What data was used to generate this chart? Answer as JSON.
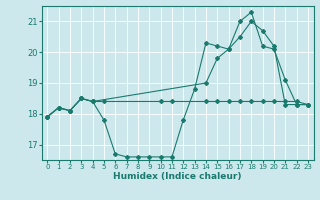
{
  "xlabel": "Humidex (Indice chaleur)",
  "bg_color": "#cce8ec",
  "grid_color": "#ffffff",
  "line_color": "#1a7a6e",
  "xlim": [
    -0.5,
    23.5
  ],
  "ylim": [
    16.5,
    21.5
  ],
  "yticks": [
    17,
    18,
    19,
    20,
    21
  ],
  "xticks": [
    0,
    1,
    2,
    3,
    4,
    5,
    6,
    7,
    8,
    9,
    10,
    11,
    12,
    13,
    14,
    15,
    16,
    17,
    18,
    19,
    20,
    21,
    22,
    23
  ],
  "series": [
    {
      "x": [
        0,
        1,
        2,
        3,
        4,
        5,
        6,
        7,
        8,
        9,
        10,
        11,
        12,
        13,
        14,
        15,
        16,
        17,
        18,
        19,
        20,
        21,
        22,
        23
      ],
      "y": [
        17.9,
        18.2,
        18.1,
        18.5,
        18.4,
        17.8,
        16.7,
        16.6,
        16.6,
        16.6,
        16.6,
        16.6,
        17.8,
        18.8,
        20.3,
        20.2,
        20.1,
        21.0,
        21.3,
        20.2,
        20.1,
        19.1,
        18.3,
        18.3
      ]
    },
    {
      "x": [
        0,
        1,
        2,
        3,
        4,
        14,
        15,
        16,
        17,
        18,
        19,
        20,
        21,
        22,
        23
      ],
      "y": [
        17.9,
        18.2,
        18.1,
        18.5,
        18.4,
        19.0,
        19.8,
        20.1,
        20.5,
        21.0,
        20.7,
        20.2,
        18.3,
        18.3,
        18.3
      ]
    },
    {
      "x": [
        0,
        1,
        2,
        3,
        4,
        5,
        10,
        11,
        14,
        15,
        16,
        17,
        18,
        19,
        20,
        21,
        22,
        23
      ],
      "y": [
        17.9,
        18.2,
        18.1,
        18.5,
        18.4,
        18.4,
        18.4,
        18.4,
        18.4,
        18.4,
        18.4,
        18.4,
        18.4,
        18.4,
        18.4,
        18.4,
        18.4,
        18.3
      ]
    }
  ],
  "figsize": [
    3.2,
    2.0
  ],
  "dpi": 100
}
